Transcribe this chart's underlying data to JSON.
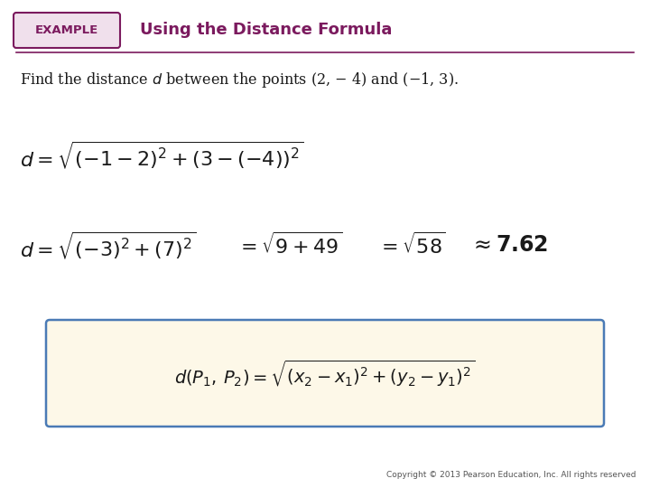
{
  "bg_color": "#ffffff",
  "example_box_color": "#7b1a5e",
  "example_box_bg": "#f0e0ec",
  "example_text": "EXAMPLE",
  "title_text": "Using the Distance Formula",
  "title_color": "#7b1a5e",
  "formula_box_bg": "#fdf8e8",
  "formula_box_border": "#4a7ab5",
  "copyright_text": "Copyright © 2013 Pearson Education, Inc. All rights reserved",
  "text_color": "#1a1a1a",
  "math_color": "#1a1a1a"
}
